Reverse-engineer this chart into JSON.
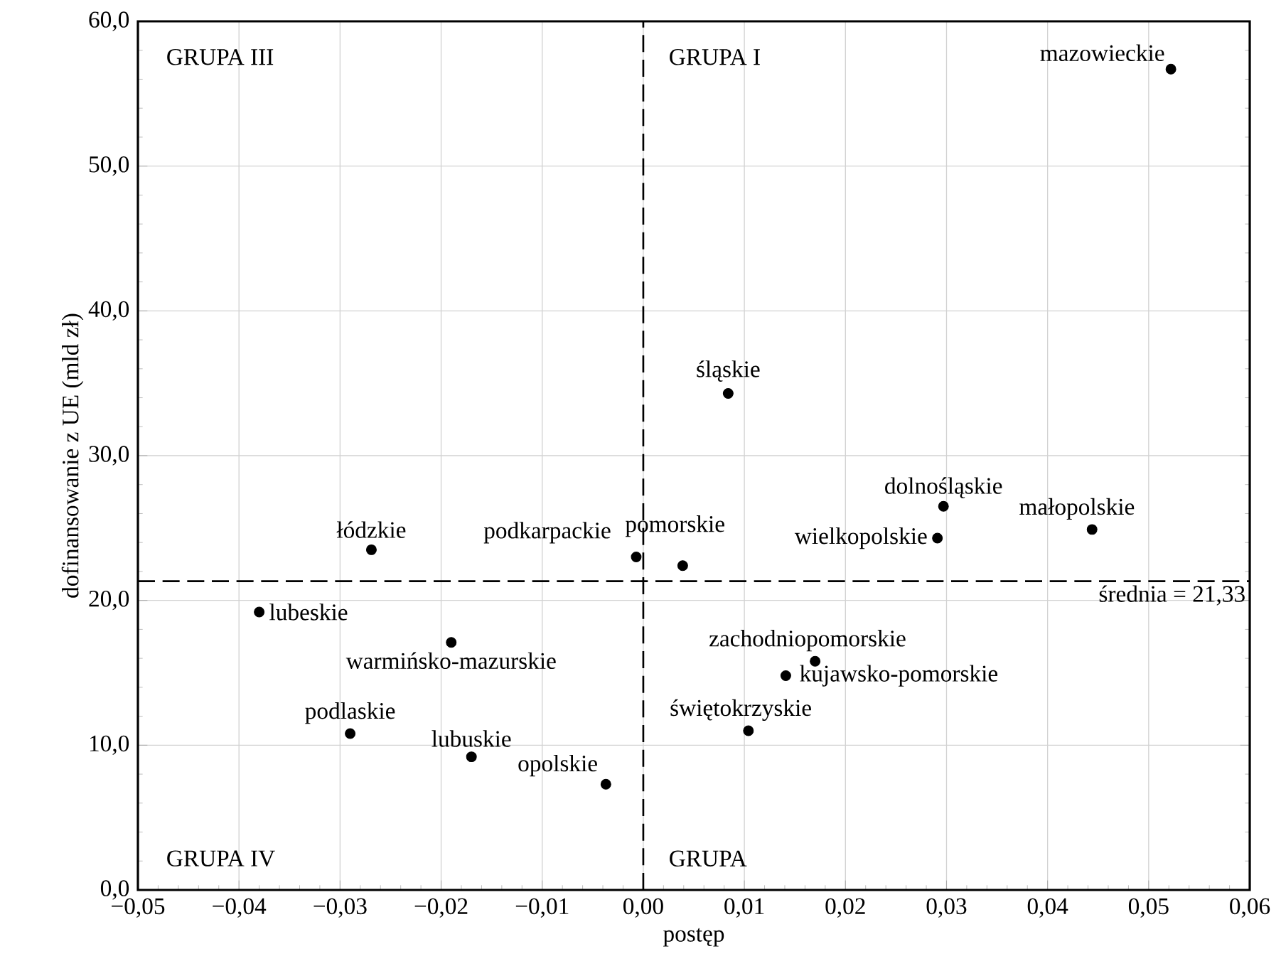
{
  "chart_data": {
    "type": "scatter",
    "xlabel": "postęp",
    "ylabel": "dofinansowanie z UE (mld zł)",
    "x": [
      0.0522,
      0.0084,
      0.0297,
      0.0444,
      0.0291,
      0.0039,
      -0.0007,
      -0.0269,
      -0.038,
      -0.019,
      -0.029,
      -0.017,
      -0.0037,
      0.0104,
      0.017,
      0.0141
    ],
    "values": [
      56.7,
      34.3,
      26.5,
      24.9,
      24.3,
      22.4,
      23.0,
      23.5,
      19.2,
      17.1,
      10.8,
      9.2,
      7.3,
      11.0,
      15.8,
      14.8
    ],
    "color": "#000000",
    "marker": "circle",
    "xlim": [
      -0.05,
      0.06
    ],
    "ylim": [
      0,
      60
    ],
    "xticks": [
      {
        "value": -0.05,
        "label": "−0,05"
      },
      {
        "value": -0.04,
        "label": "−0,04"
      },
      {
        "value": -0.03,
        "label": "−0,03"
      },
      {
        "value": -0.02,
        "label": "−0,02"
      },
      {
        "value": -0.01,
        "label": "−0,01"
      },
      {
        "value": 0,
        "label": "0,00"
      },
      {
        "value": 0.01,
        "label": "0,01"
      },
      {
        "value": 0.02,
        "label": "0,02"
      },
      {
        "value": 0.03,
        "label": "0,03"
      },
      {
        "value": 0.04,
        "label": "0,04"
      },
      {
        "value": 0.05,
        "label": "0,05"
      },
      {
        "value": 0.06,
        "label": "0,06"
      }
    ],
    "yticks": [
      {
        "value": 0,
        "label": "0,0"
      },
      {
        "value": 10,
        "label": "10,0"
      },
      {
        "value": 20,
        "label": "20,0"
      },
      {
        "value": 30,
        "label": "30,0"
      },
      {
        "value": 40,
        "label": "40,0"
      },
      {
        "value": 50,
        "label": "50,0"
      },
      {
        "value": 60,
        "label": "60,0"
      }
    ],
    "grid": true,
    "ref_lines": [
      {
        "axis": "y",
        "value": 21.33,
        "label": "średnia = 21,33",
        "line_style": "dashed"
      },
      {
        "axis": "x",
        "value": 0,
        "line_style": "dashed"
      }
    ],
    "annotations": [
      {
        "text": "mazowieckie",
        "x": 0.0522,
        "y": 56.7
      },
      {
        "text": "śląskie",
        "x": 0.0084,
        "y": 34.3
      },
      {
        "text": "dolnośląskie",
        "x": 0.0297,
        "y": 26.5
      },
      {
        "text": "małopolskie",
        "x": 0.0444,
        "y": 24.9
      },
      {
        "text": "wielkopolskie",
        "x": 0.0291,
        "y": 24.3
      },
      {
        "text": "pomorskie",
        "x": 0.0039,
        "y": 22.4
      },
      {
        "text": "podkarpackie",
        "x": -0.0007,
        "y": 23.0
      },
      {
        "text": "łódzkie",
        "x": -0.0269,
        "y": 23.5
      },
      {
        "text": "lubeskie",
        "x": -0.038,
        "y": 19.2
      },
      {
        "text": "warmińsko-mazurskie",
        "x": -0.019,
        "y": 17.1
      },
      {
        "text": "podlaskie",
        "x": -0.029,
        "y": 10.8
      },
      {
        "text": "lubuskie",
        "x": -0.017,
        "y": 9.2
      },
      {
        "text": "opolskie",
        "x": -0.0037,
        "y": 7.3
      },
      {
        "text": "świętokrzyskie",
        "x": 0.0104,
        "y": 11.0
      },
      {
        "text": "zachodniopomorskie",
        "x": 0.017,
        "y": 15.8
      },
      {
        "text": "kujawsko-pomorskie",
        "x": 0.0141,
        "y": 14.8
      },
      "GRUPA III",
      "GRUPA I",
      "GRUPA IV",
      "GRUPA"
    ]
  }
}
